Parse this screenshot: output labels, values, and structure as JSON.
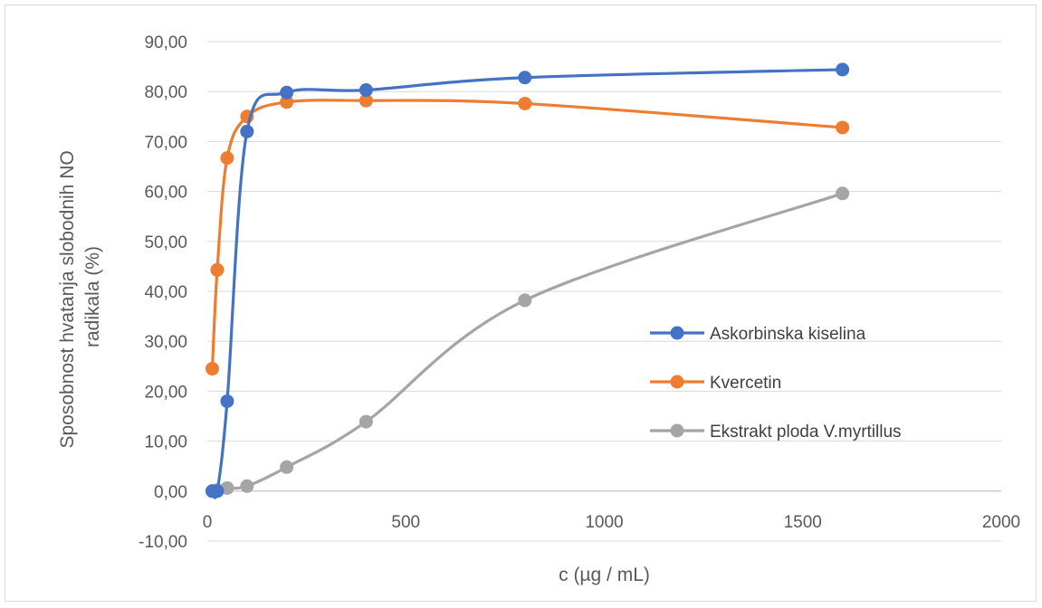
{
  "chart_data": {
    "type": "scatter",
    "title": "",
    "xlabel": "c (µg / mL)",
    "ylabel_lines": [
      "Sposobnost hvatanja slobodnih NO",
      "radikala (%)"
    ],
    "xlim": [
      0,
      2000
    ],
    "ylim": [
      -10,
      90
    ],
    "x_ticks": [
      0,
      500,
      1000,
      1500,
      2000
    ],
    "x_tick_labels": [
      "0",
      "500",
      "1000",
      "1500",
      "2000"
    ],
    "y_ticks": [
      -10,
      0,
      10,
      20,
      30,
      40,
      50,
      60,
      70,
      80,
      90
    ],
    "y_tick_labels": [
      "-10,00",
      "0,00",
      "10,00",
      "20,00",
      "30,00",
      "40,00",
      "50,00",
      "60,00",
      "70,00",
      "80,00",
      "90,00"
    ],
    "grid": true,
    "smooth_lines": true,
    "legend_position": "right",
    "series": [
      {
        "name": "Askorbinska kiselina",
        "color": "#4472c4",
        "x": [
          12.5,
          25,
          50,
          100,
          200,
          400,
          800,
          1600
        ],
        "y": [
          0,
          0,
          18.0,
          72.0,
          79.8,
          80.3,
          82.8,
          84.4
        ]
      },
      {
        "name": "Kvercetin",
        "color": "#ed7d31",
        "x": [
          12.5,
          25,
          50,
          100,
          200,
          400,
          800,
          1600
        ],
        "y": [
          24.5,
          44.3,
          66.7,
          75.0,
          77.9,
          78.2,
          77.6,
          72.8
        ]
      },
      {
        "name": "Ekstrakt ploda V.myrtillus",
        "color": "#a5a5a5",
        "x": [
          12.5,
          25,
          50,
          100,
          200,
          400,
          800,
          1600
        ],
        "y": [
          0,
          0.2,
          0.6,
          1.0,
          4.8,
          13.9,
          38.2,
          59.6
        ]
      }
    ]
  }
}
